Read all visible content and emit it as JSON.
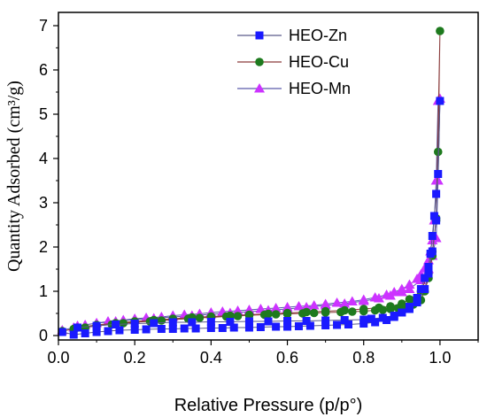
{
  "chart_data": {
    "type": "scatter",
    "xlabel": "Relative Pressure (p/p°)",
    "ylabel": "Quantity Adsorbed (cm³/g)",
    "xlim": [
      0.0,
      1.1
    ],
    "ylim": [
      -0.1,
      7.3
    ],
    "xticks": [
      0.0,
      0.2,
      0.4,
      0.6,
      0.8,
      1.0
    ],
    "yticks": [
      0,
      1,
      2,
      3,
      4,
      5,
      6,
      7
    ],
    "legend_position": "top-right",
    "grid": false,
    "series": [
      {
        "name": "HEO-Zn",
        "color": "#1a1aff",
        "line_color": "#5a5a8a",
        "marker": "square",
        "x": [
          0.01,
          0.04,
          0.07,
          0.1,
          0.13,
          0.16,
          0.2,
          0.23,
          0.27,
          0.3,
          0.33,
          0.36,
          0.4,
          0.43,
          0.46,
          0.5,
          0.53,
          0.57,
          0.6,
          0.63,
          0.66,
          0.7,
          0.73,
          0.76,
          0.8,
          0.83,
          0.86,
          0.88,
          0.9,
          0.92,
          0.94,
          0.95,
          0.96,
          0.97,
          0.975,
          0.98,
          0.985,
          0.99,
          0.995,
          1.0,
          0.99,
          0.98,
          0.97,
          0.96,
          0.94,
          0.92,
          0.9,
          0.88,
          0.85,
          0.82,
          0.8,
          0.75,
          0.7,
          0.65,
          0.6,
          0.55,
          0.5,
          0.45,
          0.4,
          0.35,
          0.3,
          0.25,
          0.2,
          0.15,
          0.1,
          0.05
        ],
        "y": [
          0.08,
          0.02,
          0.05,
          0.08,
          0.1,
          0.12,
          0.13,
          0.14,
          0.15,
          0.15,
          0.16,
          0.16,
          0.17,
          0.17,
          0.18,
          0.18,
          0.19,
          0.2,
          0.2,
          0.21,
          0.22,
          0.23,
          0.24,
          0.25,
          0.27,
          0.3,
          0.35,
          0.42,
          0.52,
          0.65,
          0.85,
          1.05,
          1.3,
          1.55,
          1.85,
          2.25,
          2.7,
          3.2,
          3.65,
          5.3,
          2.6,
          1.9,
          1.4,
          1.05,
          0.75,
          0.6,
          0.52,
          0.45,
          0.4,
          0.38,
          0.36,
          0.35,
          0.34,
          0.33,
          0.33,
          0.32,
          0.32,
          0.31,
          0.31,
          0.3,
          0.3,
          0.28,
          0.27,
          0.25,
          0.22,
          0.18
        ]
      },
      {
        "name": "HEO-Cu",
        "color": "#1e7a1e",
        "line_color": "#8a3a3a",
        "marker": "circle",
        "x": [
          0.01,
          0.04,
          0.07,
          0.1,
          0.14,
          0.17,
          0.2,
          0.24,
          0.27,
          0.3,
          0.34,
          0.37,
          0.4,
          0.44,
          0.47,
          0.5,
          0.54,
          0.57,
          0.6,
          0.64,
          0.67,
          0.7,
          0.74,
          0.77,
          0.8,
          0.83,
          0.85,
          0.87,
          0.89,
          0.91,
          0.93,
          0.95,
          0.96,
          0.97,
          0.98,
          0.99,
          0.995,
          1.0,
          0.99,
          0.98,
          0.97,
          0.95,
          0.92,
          0.9,
          0.87,
          0.84,
          0.8,
          0.75,
          0.7,
          0.65,
          0.6,
          0.55,
          0.5,
          0.45,
          0.4,
          0.35,
          0.3,
          0.25,
          0.2,
          0.15,
          0.1,
          0.05
        ],
        "y": [
          0.1,
          0.15,
          0.18,
          0.22,
          0.25,
          0.28,
          0.3,
          0.32,
          0.34,
          0.36,
          0.38,
          0.4,
          0.41,
          0.43,
          0.44,
          0.46,
          0.47,
          0.48,
          0.49,
          0.5,
          0.51,
          0.52,
          0.53,
          0.54,
          0.55,
          0.57,
          0.58,
          0.6,
          0.62,
          0.65,
          0.7,
          0.8,
          1.0,
          1.3,
          1.8,
          2.65,
          4.15,
          6.88,
          2.6,
          1.9,
          1.4,
          1.0,
          0.82,
          0.72,
          0.66,
          0.63,
          0.6,
          0.57,
          0.55,
          0.53,
          0.51,
          0.49,
          0.47,
          0.45,
          0.43,
          0.41,
          0.38,
          0.35,
          0.32,
          0.28,
          0.24,
          0.18
        ]
      },
      {
        "name": "HEO-Mn",
        "color": "#cc33ff",
        "line_color": "#5a5aaa",
        "marker": "triangle",
        "x": [
          0.01,
          0.04,
          0.07,
          0.1,
          0.13,
          0.17,
          0.2,
          0.23,
          0.27,
          0.3,
          0.33,
          0.37,
          0.4,
          0.43,
          0.47,
          0.5,
          0.53,
          0.57,
          0.6,
          0.63,
          0.67,
          0.7,
          0.73,
          0.77,
          0.8,
          0.83,
          0.86,
          0.88,
          0.9,
          0.92,
          0.94,
          0.95,
          0.96,
          0.97,
          0.975,
          0.98,
          0.985,
          0.99,
          0.995,
          1.0,
          0.995,
          0.99,
          0.98,
          0.97,
          0.95,
          0.92,
          0.9,
          0.87,
          0.84,
          0.8,
          0.75,
          0.7,
          0.65,
          0.6,
          0.55,
          0.5,
          0.45,
          0.4,
          0.35,
          0.3,
          0.25,
          0.2,
          0.15,
          0.1,
          0.05
        ],
        "y": [
          0.12,
          0.18,
          0.24,
          0.28,
          0.32,
          0.35,
          0.38,
          0.4,
          0.42,
          0.45,
          0.47,
          0.49,
          0.52,
          0.54,
          0.56,
          0.58,
          0.6,
          0.62,
          0.64,
          0.66,
          0.68,
          0.71,
          0.74,
          0.77,
          0.81,
          0.86,
          0.92,
          0.98,
          1.05,
          1.15,
          1.28,
          1.38,
          1.52,
          1.7,
          1.9,
          2.15,
          2.6,
          3.5,
          5.3,
          5.35,
          3.5,
          2.2,
          1.8,
          1.5,
          1.25,
          1.05,
          0.98,
          0.9,
          0.84,
          0.78,
          0.72,
          0.68,
          0.64,
          0.6,
          0.57,
          0.54,
          0.51,
          0.48,
          0.45,
          0.42,
          0.39,
          0.36,
          0.32,
          0.28,
          0.22
        ]
      }
    ]
  }
}
